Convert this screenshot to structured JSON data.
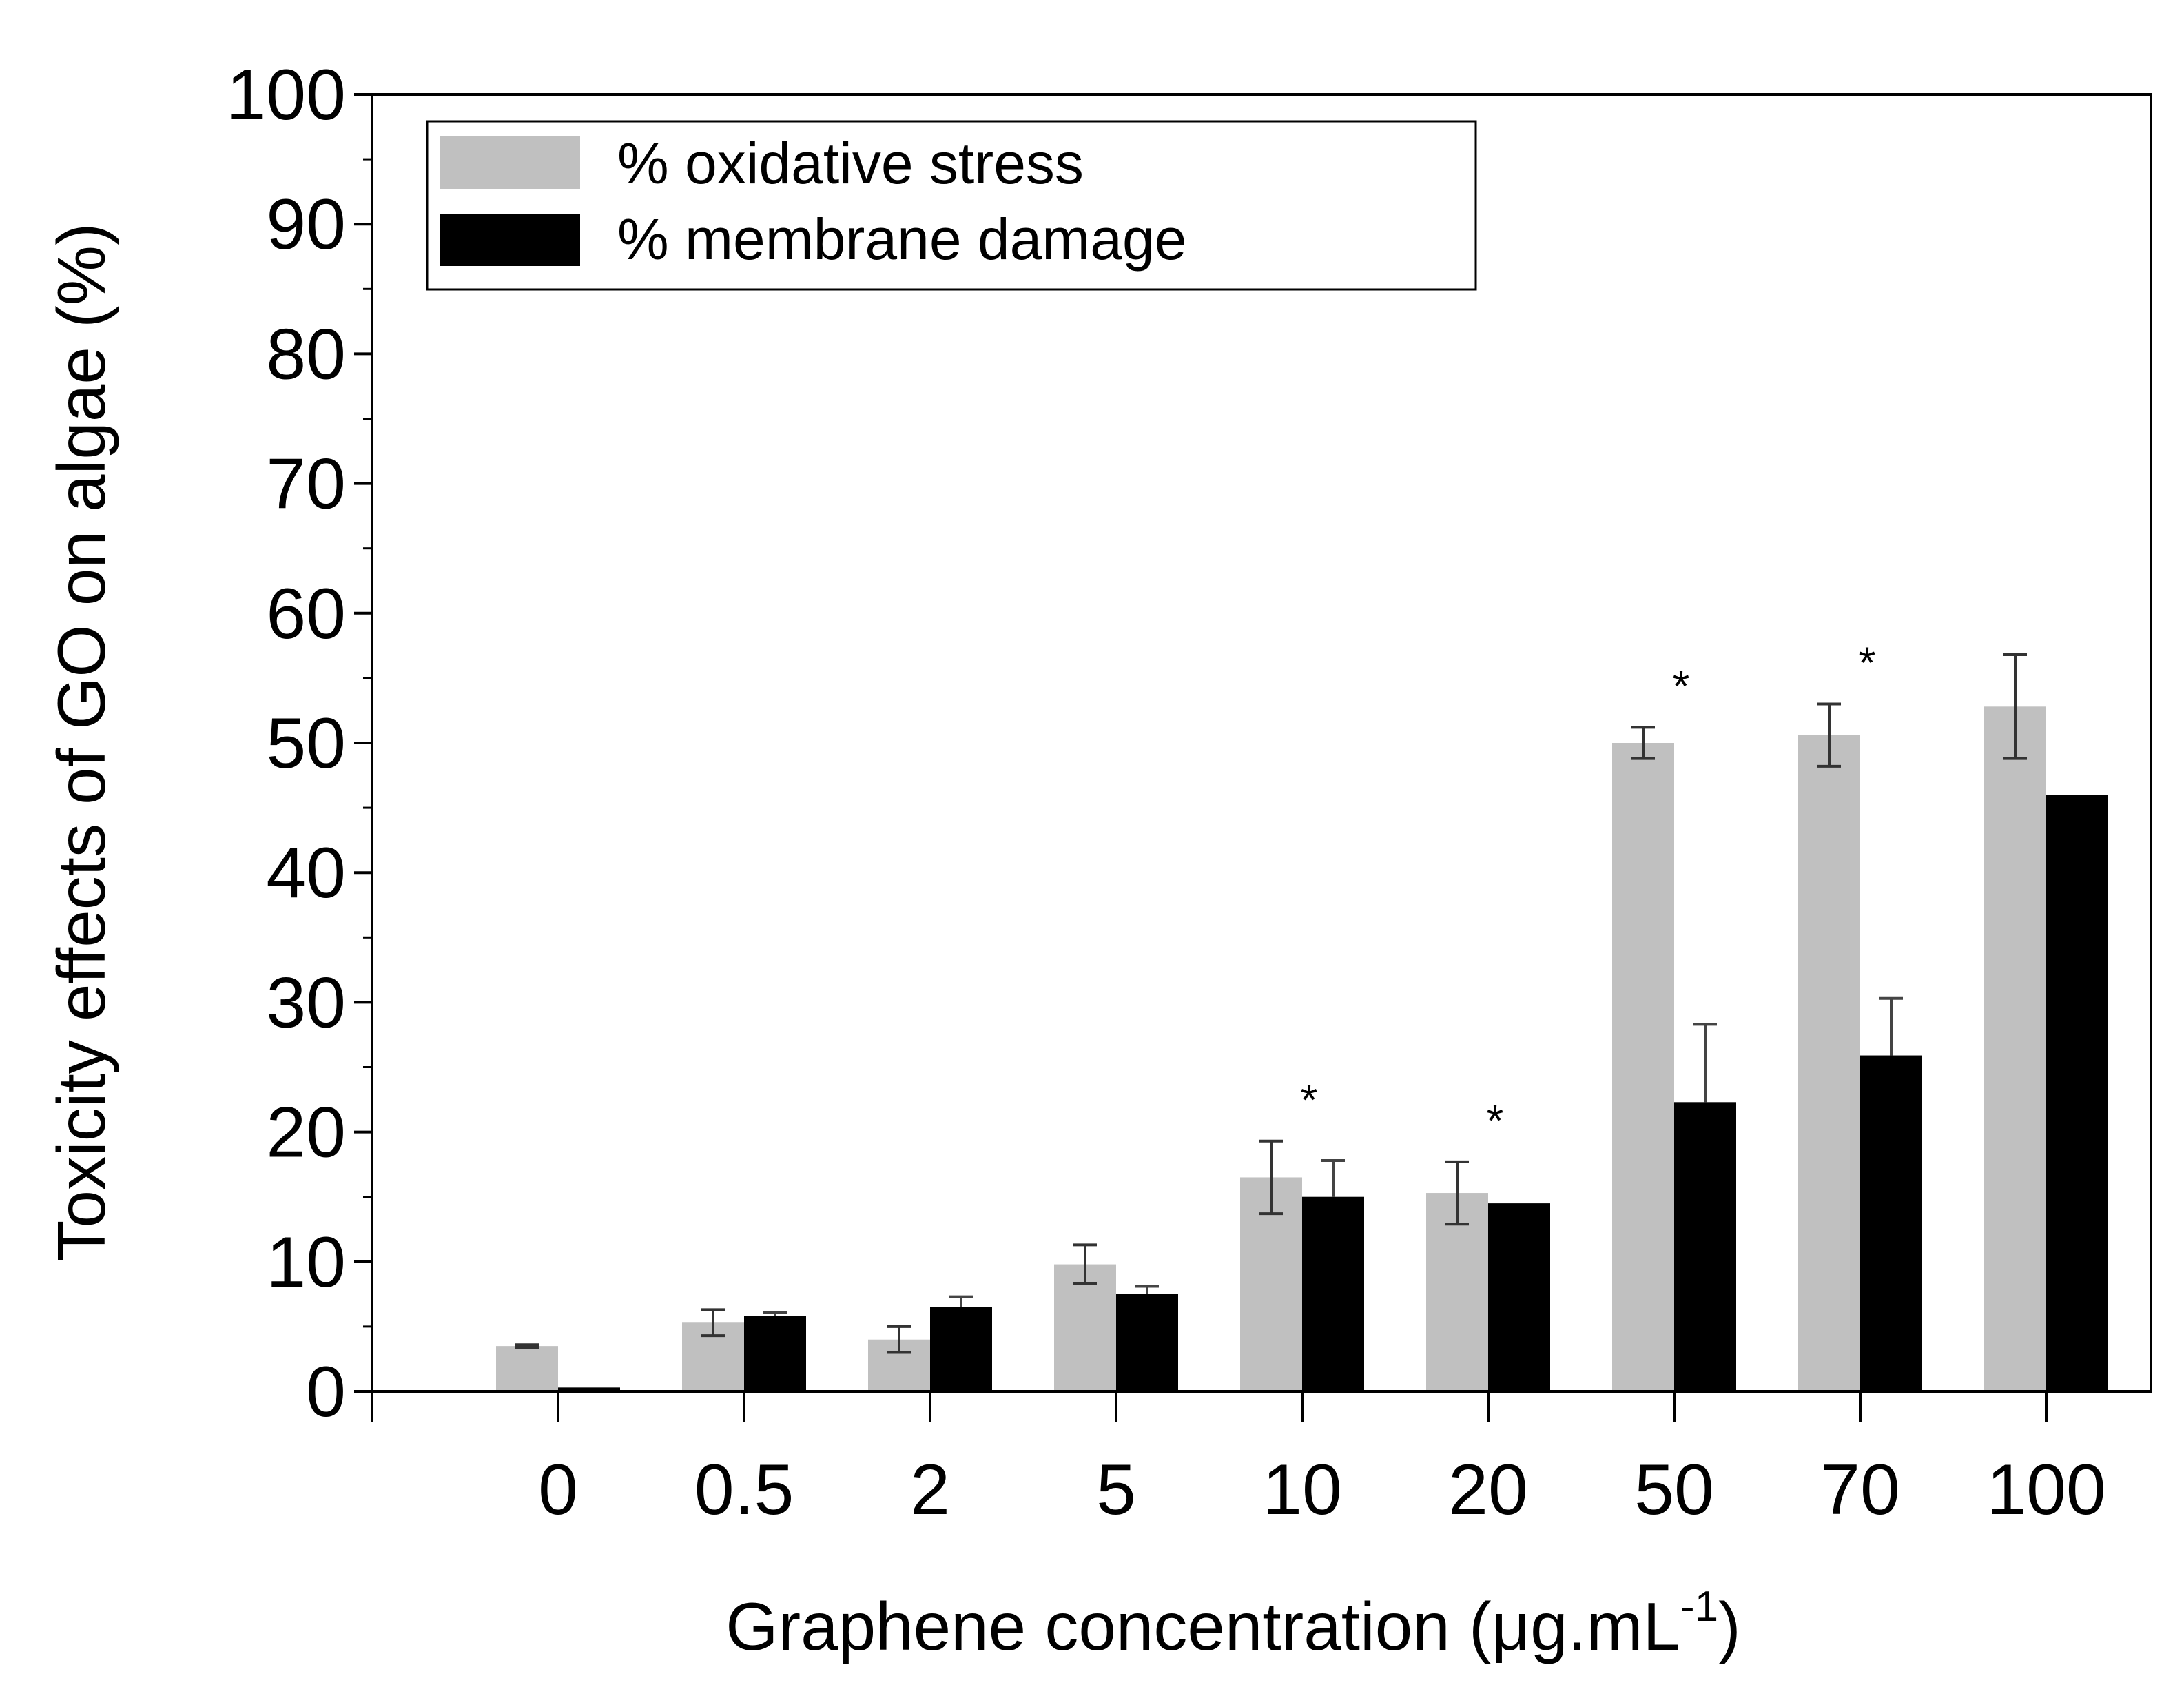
{
  "chart_data": {
    "type": "bar",
    "title": "",
    "xlabel": "Graphene concentration (μg.mL",
    "xlabel_superscript": "-1",
    "xlabel_suffix": ")",
    "ylabel": "Toxicity effects of GO on algae (%)",
    "ylim": [
      0,
      100
    ],
    "yticks": [
      "0",
      "10",
      "20",
      "30",
      "40",
      "50",
      "60",
      "70",
      "80",
      "90",
      "100"
    ],
    "categories": [
      "0",
      "0.5",
      "2",
      "5",
      "10",
      "20",
      "50",
      "70",
      "100"
    ],
    "legend_position": "top-left",
    "series": [
      {
        "name": "% oxidative stress",
        "color": "#c0c0c0",
        "values": [
          3.5,
          5.3,
          4.0,
          9.8,
          16.5,
          15.3,
          50.0,
          50.6,
          52.8
        ],
        "errors": [
          0.1,
          1.0,
          1.0,
          1.5,
          2.8,
          2.4,
          1.2,
          2.4,
          4.0
        ]
      },
      {
        "name": "% membrane damage",
        "color": "#000000",
        "values": [
          0.3,
          5.8,
          6.5,
          7.5,
          15.0,
          14.5,
          22.3,
          25.9,
          46.0
        ],
        "errors": [
          0.0,
          0.3,
          0.8,
          0.6,
          2.8,
          0.0,
          6.0,
          4.4,
          0.0
        ]
      }
    ],
    "significance": {
      "symbol": "*",
      "categories": [
        "10",
        "20",
        "50",
        "70"
      ]
    }
  }
}
